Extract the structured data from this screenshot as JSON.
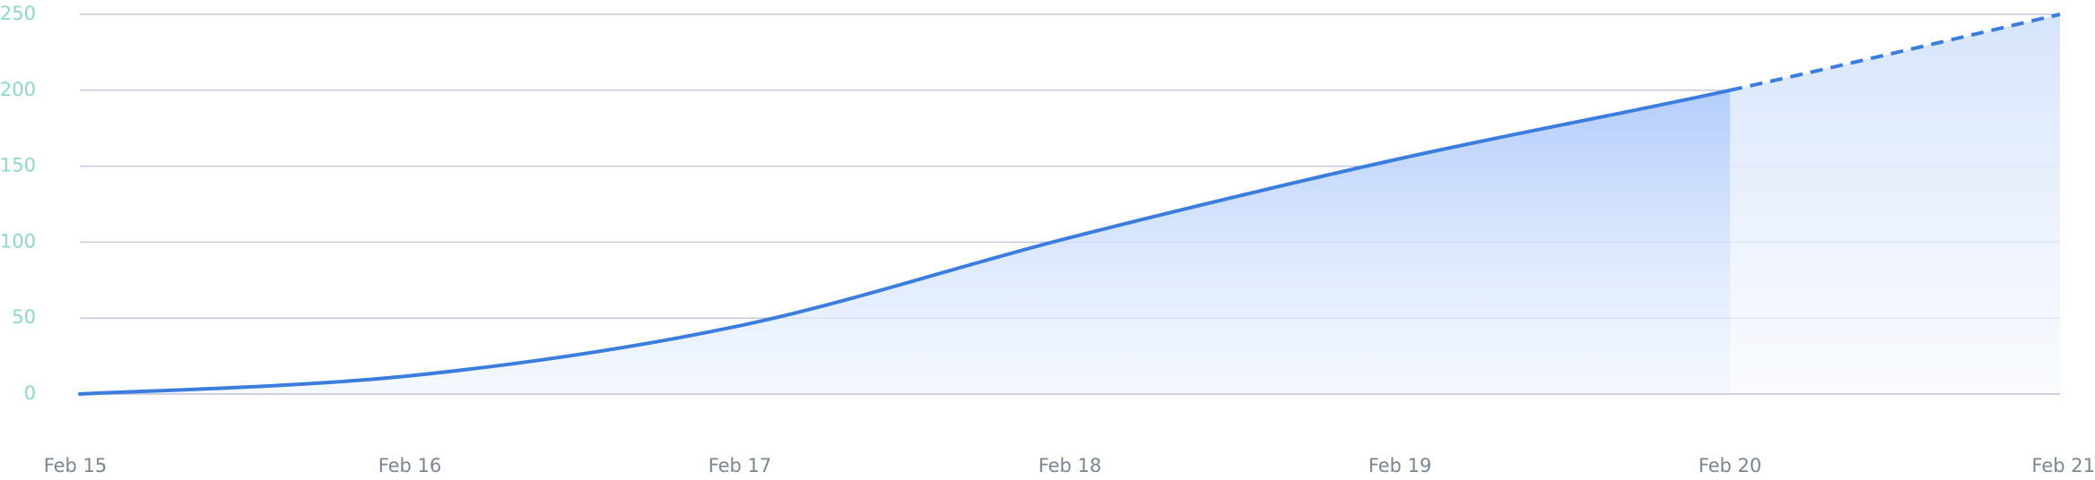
{
  "chart_data": {
    "type": "line",
    "x": [
      "Feb 15",
      "Feb 16",
      "Feb 17",
      "Feb 18",
      "Feb 19",
      "Feb 20",
      "Feb 21"
    ],
    "series": [
      {
        "color": "#3b7ddd",
        "values": [
          0,
          12,
          45,
          103,
          155,
          200,
          250
        ]
      }
    ],
    "forecast_start": 5,
    "ylim": [
      0,
      250
    ],
    "yticks": [
      0,
      50,
      100,
      150,
      200,
      250
    ],
    "grid": true,
    "grid_color": "#c5c8dd",
    "ytick_color": "#8fd6c8",
    "xtick_color": "#7a8590"
  }
}
